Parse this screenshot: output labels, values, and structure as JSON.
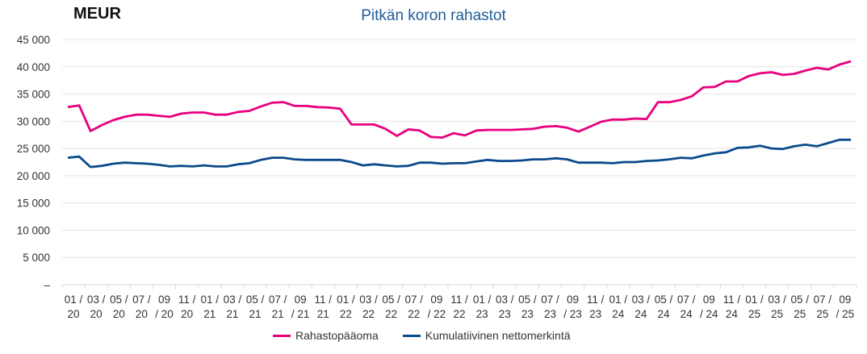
{
  "unit_label": "MEUR",
  "chart_data": {
    "type": "line",
    "title": "Pitkän koron rahastot",
    "ylabel": "MEUR",
    "ylim": [
      0,
      45000
    ],
    "yticks": [
      0,
      5000,
      10000,
      15000,
      20000,
      25000,
      30000,
      35000,
      40000,
      45000
    ],
    "ytick_labels": [
      "–",
      "5 000",
      "10 000",
      "15 000",
      "20 000",
      "25 000",
      "30 000",
      "35 000",
      "40 000",
      "45 000"
    ],
    "grid": true,
    "legend_position": "bottom",
    "x_tick_labels": [
      [
        "01 /",
        "20"
      ],
      [
        "03 /",
        "20"
      ],
      [
        "05 /",
        "20"
      ],
      [
        "07 /",
        "20"
      ],
      [
        "09",
        "/ 20"
      ],
      [
        "11 /",
        "20"
      ],
      [
        "01 /",
        "21"
      ],
      [
        "03 /",
        "21"
      ],
      [
        "05 /",
        "21"
      ],
      [
        "07 /",
        "21"
      ],
      [
        "09",
        "/ 21"
      ],
      [
        "11 /",
        "21"
      ],
      [
        "01 /",
        "22"
      ],
      [
        "03 /",
        "22"
      ],
      [
        "05 /",
        "22"
      ],
      [
        "07 /",
        "22"
      ],
      [
        "09",
        "/ 22"
      ],
      [
        "11 /",
        "22"
      ],
      [
        "01 /",
        "23"
      ],
      [
        "03 /",
        "23"
      ],
      [
        "05 /",
        "23"
      ],
      [
        "07 /",
        "23"
      ],
      [
        "09",
        "/ 23"
      ],
      [
        "11 /",
        "23"
      ],
      [
        "01 /",
        "24"
      ],
      [
        "03 /",
        "24"
      ],
      [
        "05 /",
        "24"
      ],
      [
        "07 /",
        "24"
      ],
      [
        "09",
        "/ 24"
      ],
      [
        "11 /",
        "24"
      ],
      [
        "01 /",
        "25"
      ],
      [
        "03 /",
        "25"
      ],
      [
        "05 /",
        "25"
      ],
      [
        "07 /",
        "25"
      ],
      [
        "09",
        "/ 25"
      ]
    ],
    "x": [
      "01/2020",
      "02/2020",
      "03/2020",
      "04/2020",
      "05/2020",
      "06/2020",
      "07/2020",
      "08/2020",
      "09/2020",
      "10/2020",
      "11/2020",
      "12/2020",
      "01/2021",
      "02/2021",
      "03/2021",
      "04/2021",
      "05/2021",
      "06/2021",
      "07/2021",
      "08/2021",
      "09/2021",
      "10/2021",
      "11/2021",
      "12/2021",
      "01/2022",
      "02/2022",
      "03/2022",
      "04/2022",
      "05/2022",
      "06/2022",
      "07/2022",
      "08/2022",
      "09/2022",
      "10/2022",
      "11/2022",
      "12/2022",
      "01/2023",
      "02/2023",
      "03/2023",
      "04/2023",
      "05/2023",
      "06/2023",
      "07/2023",
      "08/2023",
      "09/2023",
      "10/2023",
      "11/2023",
      "12/2023",
      "01/2024",
      "02/2024",
      "03/2024",
      "04/2024",
      "05/2024",
      "06/2024",
      "07/2024",
      "08/2024",
      "09/2024",
      "10/2024",
      "11/2024",
      "12/2024",
      "01/2025",
      "02/2025",
      "03/2025",
      "04/2025",
      "05/2025",
      "06/2025",
      "07/2025",
      "08/2025",
      "09/2025",
      "10/2025"
    ],
    "series": [
      {
        "name": "Rahastopääoma",
        "color": "#e8007f",
        "values": [
          32600,
          32900,
          28200,
          29300,
          30200,
          30800,
          31200,
          31200,
          31000,
          30800,
          31400,
          31600,
          31600,
          31200,
          31200,
          31700,
          31900,
          32700,
          33400,
          33500,
          32800,
          32800,
          32600,
          32500,
          32300,
          29400,
          29400,
          29400,
          28600,
          27300,
          28500,
          28300,
          27100,
          27000,
          27800,
          27400,
          28300,
          28400,
          28400,
          28400,
          28500,
          28600,
          29000,
          29100,
          28800,
          28100,
          29000,
          29900,
          30300,
          30300,
          30500,
          30400,
          33500,
          33500,
          33900,
          34600,
          36200,
          36300,
          37300,
          37300,
          38300,
          38800,
          39000,
          38500,
          38700,
          39300,
          39800,
          39500,
          40400,
          41000
        ]
      },
      {
        "name": "Kumulatiivinen nettomerkintä",
        "color": "#0b4a8b",
        "values": [
          23300,
          23500,
          21600,
          21800,
          22200,
          22400,
          22300,
          22200,
          22000,
          21700,
          21800,
          21700,
          21900,
          21700,
          21700,
          22100,
          22300,
          22900,
          23300,
          23300,
          23000,
          22900,
          22900,
          22900,
          22900,
          22500,
          21900,
          22100,
          21900,
          21700,
          21800,
          22400,
          22400,
          22200,
          22300,
          22300,
          22600,
          22900,
          22700,
          22700,
          22800,
          23000,
          23000,
          23200,
          23000,
          22400,
          22400,
          22400,
          22300,
          22500,
          22500,
          22700,
          22800,
          23000,
          23300,
          23200,
          23700,
          24100,
          24300,
          25100,
          25200,
          25500,
          25000,
          24900,
          25400,
          25700,
          25400,
          26000,
          26600,
          26600
        ]
      }
    ]
  }
}
